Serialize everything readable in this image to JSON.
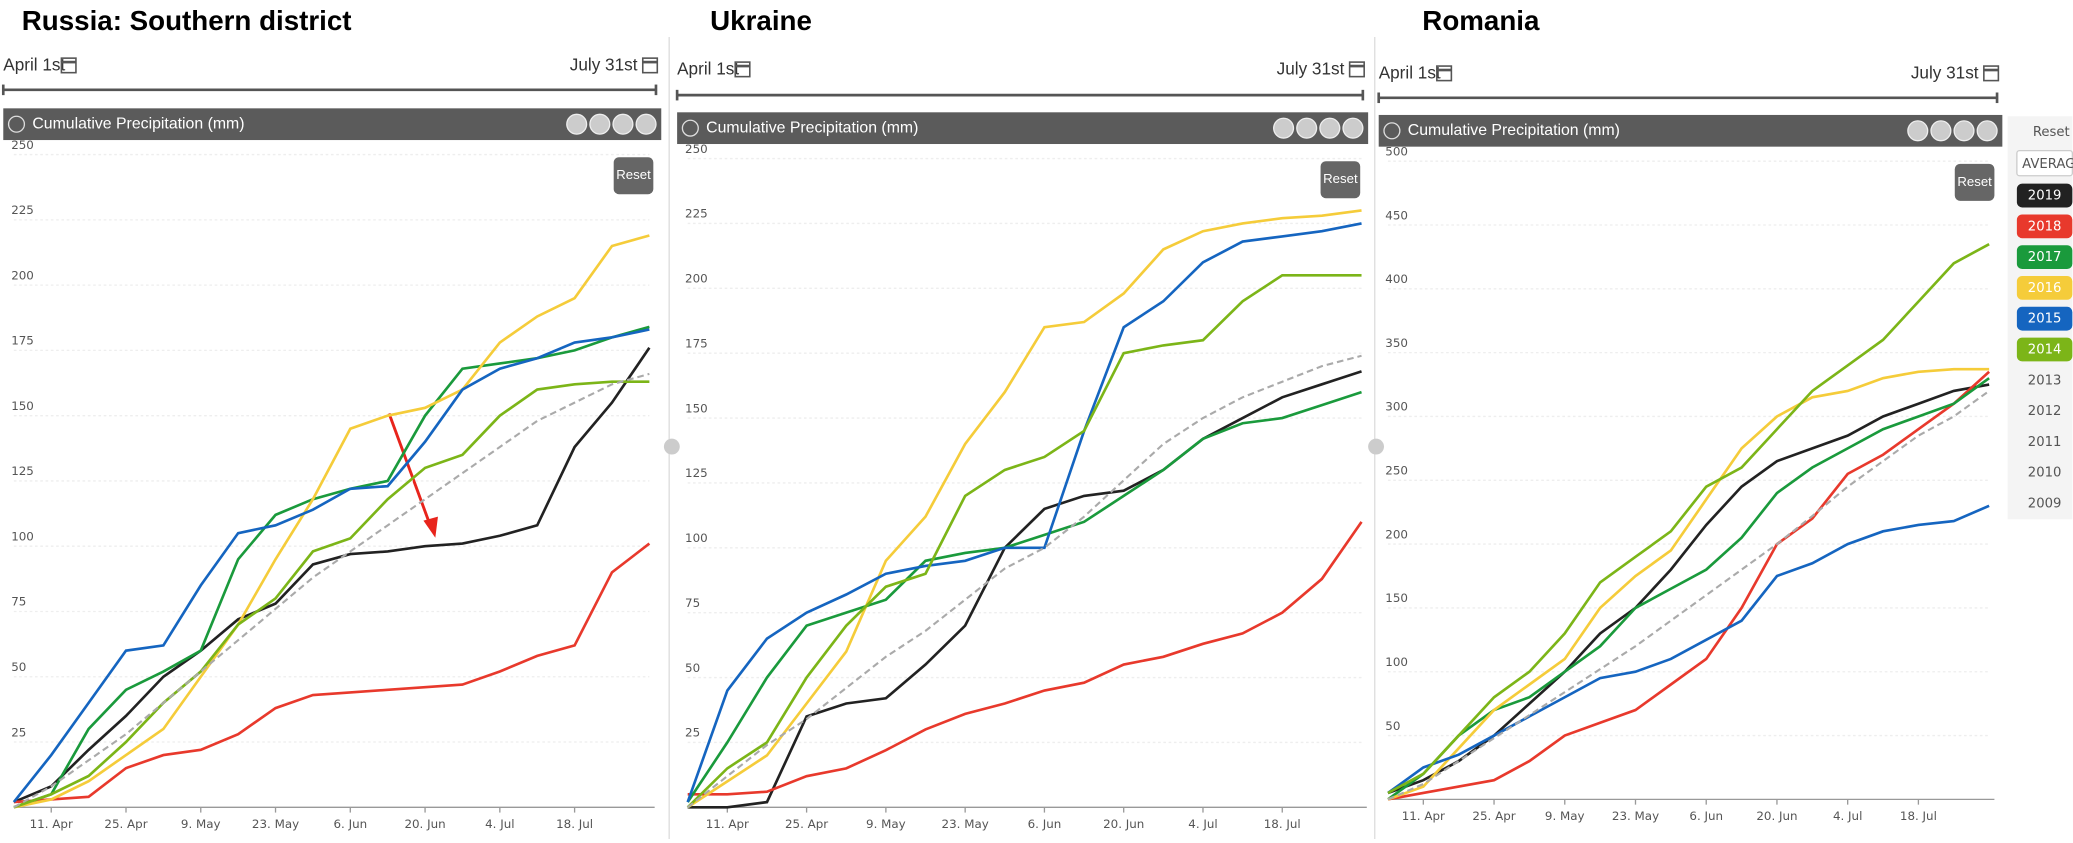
{
  "chart_data": [
    {
      "type": "line",
      "title": "Russia: Southern district",
      "date_start": "April 1st",
      "date_end": "July 31st",
      "panel_title": "Cumulative Precipitation (mm)",
      "reset": "Reset",
      "categories": [
        null,
        "11. Apr",
        null,
        "25. Apr",
        null,
        "9. May",
        null,
        "23. May",
        null,
        "6. Jun",
        null,
        "20. Jun",
        null,
        "4. Jul",
        null,
        "18. Jul",
        null,
        null
      ],
      "ylim": [
        0,
        250
      ],
      "yticks": [
        25,
        50,
        75,
        100,
        125,
        150,
        175,
        200,
        225,
        250
      ],
      "grid": true,
      "series": [
        {
          "name": "2019",
          "color": "#222222",
          "values": [
            2,
            8,
            22,
            35,
            50,
            60,
            72,
            78,
            93,
            97,
            98,
            100,
            101,
            104,
            108,
            138,
            155,
            176
          ]
        },
        {
          "name": "2018",
          "color": "#e8392c",
          "values": [
            2,
            3,
            4,
            15,
            20,
            22,
            28,
            38,
            43,
            44,
            45,
            46,
            47,
            52,
            58,
            62,
            90,
            101
          ]
        },
        {
          "name": "2017",
          "color": "#1a9a3c",
          "values": [
            0,
            5,
            30,
            45,
            52,
            60,
            95,
            112,
            118,
            122,
            125,
            150,
            168,
            170,
            172,
            175,
            180,
            184
          ]
        },
        {
          "name": "2016",
          "color": "#f5cc3a",
          "values": [
            0,
            3,
            10,
            20,
            30,
            50,
            70,
            95,
            118,
            145,
            150,
            153,
            160,
            178,
            188,
            195,
            215,
            219
          ]
        },
        {
          "name": "2015",
          "color": "#1565c0",
          "values": [
            2,
            20,
            40,
            60,
            62,
            85,
            105,
            108,
            114,
            122,
            123,
            140,
            160,
            168,
            172,
            178,
            180,
            183
          ]
        },
        {
          "name": "2014",
          "color": "#7cb518",
          "values": [
            0,
            5,
            12,
            25,
            40,
            52,
            70,
            80,
            98,
            103,
            118,
            130,
            135,
            150,
            160,
            162,
            163,
            163
          ]
        },
        {
          "name": "AVERAGE",
          "color": "#aaaaaa",
          "dashed": true,
          "values": [
            0,
            8,
            18,
            28,
            40,
            52,
            64,
            76,
            88,
            98,
            108,
            118,
            128,
            138,
            148,
            155,
            162,
            166
          ]
        }
      ]
    },
    {
      "type": "line",
      "title": "Ukraine",
      "date_start": "April 1st",
      "date_end": "July 31st",
      "panel_title": "Cumulative Precipitation (mm)",
      "reset": "Reset",
      "categories": [
        null,
        "11. Apr",
        null,
        "25. Apr",
        null,
        "9. May",
        null,
        "23. May",
        null,
        "6. Jun",
        null,
        "20. Jun",
        null,
        "4. Jul",
        null,
        "18. Jul",
        null,
        null
      ],
      "ylim": [
        0,
        250
      ],
      "yticks": [
        25,
        50,
        75,
        100,
        125,
        150,
        175,
        200,
        225,
        250
      ],
      "grid": true,
      "series": [
        {
          "name": "2019",
          "color": "#222222",
          "values": [
            0,
            0,
            2,
            35,
            40,
            42,
            55,
            70,
            100,
            115,
            120,
            122,
            130,
            142,
            150,
            158,
            163,
            168
          ]
        },
        {
          "name": "2018",
          "color": "#e8392c",
          "values": [
            5,
            5,
            6,
            12,
            15,
            22,
            30,
            36,
            40,
            45,
            48,
            55,
            58,
            63,
            67,
            75,
            88,
            110
          ]
        },
        {
          "name": "2017",
          "color": "#1a9a3c",
          "values": [
            2,
            25,
            50,
            70,
            75,
            80,
            95,
            98,
            100,
            105,
            110,
            120,
            130,
            142,
            148,
            150,
            155,
            160
          ]
        },
        {
          "name": "2016",
          "color": "#f5cc3a",
          "values": [
            0,
            10,
            20,
            40,
            60,
            95,
            112,
            140,
            160,
            185,
            187,
            198,
            215,
            222,
            225,
            227,
            228,
            230
          ]
        },
        {
          "name": "2015",
          "color": "#1565c0",
          "values": [
            2,
            45,
            65,
            75,
            82,
            90,
            93,
            95,
            100,
            100,
            145,
            185,
            195,
            210,
            218,
            220,
            222,
            225
          ]
        },
        {
          "name": "2014",
          "color": "#7cb518",
          "values": [
            0,
            15,
            25,
            50,
            70,
            85,
            90,
            120,
            130,
            135,
            145,
            175,
            178,
            180,
            195,
            205,
            205,
            205
          ]
        },
        {
          "name": "AVERAGE",
          "color": "#aaaaaa",
          "dashed": true,
          "values": [
            0,
            12,
            24,
            34,
            46,
            58,
            68,
            80,
            92,
            100,
            112,
            126,
            140,
            150,
            158,
            164,
            170,
            174
          ]
        }
      ]
    },
    {
      "type": "line",
      "title": "Romania",
      "date_start": "April 1st",
      "date_end": "July 31st",
      "panel_title": "Cumulative Precipitation (mm)",
      "reset": "Reset",
      "categories": [
        null,
        "11. Apr",
        null,
        "25. Apr",
        null,
        "9. May",
        null,
        "23. May",
        null,
        "6. Jun",
        null,
        "20. Jun",
        null,
        "4. Jul",
        null,
        "18. Jul",
        null,
        null
      ],
      "ylim": [
        0,
        500
      ],
      "yticks": [
        50,
        100,
        150,
        200,
        250,
        300,
        350,
        400,
        450,
        500
      ],
      "grid": true,
      "series": [
        {
          "name": "2019",
          "color": "#222222",
          "values": [
            5,
            15,
            30,
            50,
            75,
            100,
            130,
            150,
            180,
            215,
            245,
            265,
            275,
            285,
            300,
            310,
            320,
            325
          ]
        },
        {
          "name": "2018",
          "color": "#e8392c",
          "values": [
            0,
            5,
            10,
            15,
            30,
            50,
            60,
            70,
            90,
            110,
            150,
            200,
            220,
            255,
            270,
            290,
            310,
            335
          ]
        },
        {
          "name": "2017",
          "color": "#1a9a3c",
          "values": [
            0,
            20,
            50,
            70,
            80,
            100,
            120,
            150,
            165,
            180,
            205,
            240,
            260,
            275,
            290,
            300,
            310,
            330
          ]
        },
        {
          "name": "2016",
          "color": "#f5cc3a",
          "values": [
            0,
            10,
            40,
            70,
            90,
            110,
            150,
            175,
            195,
            235,
            275,
            300,
            315,
            320,
            330,
            335,
            337,
            337
          ]
        },
        {
          "name": "2015",
          "color": "#1565c0",
          "values": [
            5,
            25,
            35,
            50,
            65,
            80,
            95,
            100,
            110,
            125,
            140,
            175,
            185,
            200,
            210,
            215,
            218,
            230
          ]
        },
        {
          "name": "2014",
          "color": "#7cb518",
          "values": [
            5,
            20,
            50,
            80,
            100,
            130,
            170,
            190,
            210,
            245,
            260,
            290,
            320,
            340,
            360,
            390,
            420,
            435
          ]
        },
        {
          "name": "AVERAGE",
          "color": "#aaaaaa",
          "dashed": true,
          "values": [
            0,
            12,
            30,
            48,
            66,
            84,
            102,
            120,
            140,
            160,
            180,
            200,
            222,
            245,
            265,
            285,
            300,
            320
          ]
        }
      ]
    }
  ],
  "legend": {
    "reset": "Reset",
    "inactive": [
      "2013",
      "2012",
      "2011",
      "2010",
      "2009"
    ]
  }
}
